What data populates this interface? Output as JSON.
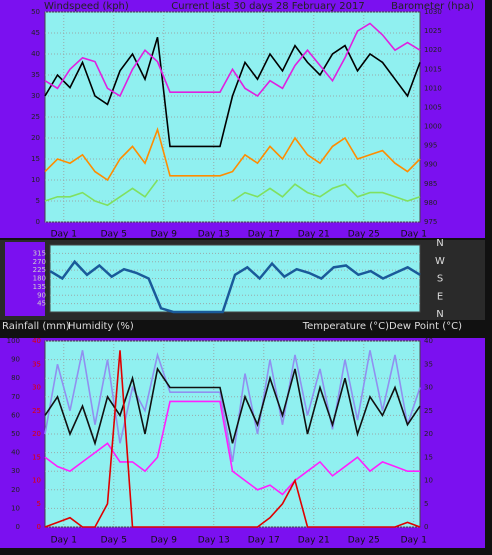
{
  "chart_data": [
    {
      "type": "line",
      "title": "Current last 30 days 28 February 2017",
      "ylabel": "Windspeed (kph)",
      "y2label": "Barometer (hpa)",
      "x": [
        0,
        1,
        2,
        3,
        4,
        5,
        6,
        7,
        8,
        9,
        10,
        11,
        12,
        13,
        14,
        15,
        16,
        17,
        18,
        19,
        20,
        21,
        22,
        23,
        24,
        25,
        26,
        27,
        28,
        29,
        30
      ],
      "xlim": [
        0,
        30
      ],
      "xticks": [
        {
          "value": 1.5,
          "label": "Day 1"
        },
        {
          "value": 5.5,
          "label": "Day 5"
        },
        {
          "value": 9.5,
          "label": "Day 9"
        },
        {
          "value": 13.5,
          "label": "Day 13"
        },
        {
          "value": 17.5,
          "label": "Day 17"
        },
        {
          "value": 21.5,
          "label": "Day 21"
        },
        {
          "value": 25.5,
          "label": "Day 25"
        },
        {
          "value": 29.5,
          "label": "Day 1"
        }
      ],
      "ylim": [
        0,
        50
      ],
      "yticks": [
        0,
        5,
        10,
        15,
        20,
        25,
        30,
        35,
        40,
        45,
        50
      ],
      "y2lim": [
        975,
        1030
      ],
      "y2ticks": [
        975,
        980,
        985,
        990,
        995,
        1000,
        1005,
        1010,
        1015,
        1020,
        1025,
        1030
      ],
      "grid": true,
      "series": [
        {
          "color": "#000000",
          "values": [
            30,
            35,
            32,
            38,
            30,
            28,
            36,
            40,
            34,
            44,
            18,
            18,
            18,
            18,
            18,
            30,
            38,
            34,
            40,
            36,
            42,
            38,
            35,
            40,
            42,
            36,
            40,
            38,
            34,
            30,
            38
          ]
        },
        {
          "color": "#ff8c00",
          "values": [
            12,
            15,
            14,
            16,
            12,
            10,
            15,
            18,
            14,
            22,
            11,
            11,
            11,
            11,
            11,
            12,
            16,
            14,
            18,
            15,
            20,
            16,
            14,
            18,
            20,
            15,
            16,
            17,
            14,
            12,
            15
          ]
        },
        {
          "color": "#80e060",
          "values": [
            5,
            6,
            6,
            7,
            5,
            4,
            6,
            8,
            6,
            10,
            null,
            null,
            null,
            null,
            null,
            5,
            7,
            6,
            8,
            6,
            9,
            7,
            6,
            8,
            9,
            6,
            7,
            7,
            6,
            5,
            6
          ]
        },
        {
          "color": "#e020e0",
          "axis": "y2",
          "values": [
            1012,
            1010,
            1015,
            1018,
            1017,
            1010,
            1008,
            1015,
            1020,
            1017,
            1009,
            1009,
            1009,
            1009,
            1009,
            1015,
            1010,
            1008,
            1012,
            1010,
            1016,
            1020,
            1016,
            1012,
            1018,
            1025,
            1027,
            1024,
            1020,
            1022,
            1020
          ]
        }
      ]
    },
    {
      "type": "line",
      "x": [
        0,
        1,
        2,
        3,
        4,
        5,
        6,
        7,
        8,
        9,
        10,
        11,
        12,
        13,
        14,
        15,
        16,
        17,
        18,
        19,
        20,
        21,
        22,
        23,
        24,
        25,
        26,
        27,
        28,
        29,
        30
      ],
      "xlim": [
        0,
        30
      ],
      "ylim": [
        0,
        360
      ],
      "yticks": [
        45,
        90,
        135,
        180,
        225,
        270,
        315
      ],
      "compass": [
        "N",
        "W",
        "S",
        "E",
        "N"
      ],
      "series": [
        {
          "color": "#1a5a9a",
          "values": [
            220,
            180,
            270,
            200,
            250,
            190,
            230,
            210,
            180,
            20,
            0,
            0,
            0,
            0,
            0,
            200,
            240,
            180,
            260,
            190,
            230,
            210,
            180,
            240,
            250,
            200,
            220,
            180,
            210,
            240,
            200
          ]
        }
      ]
    },
    {
      "type": "line",
      "y3label": "Rainfall (mm)",
      "ylabel": "Humidity (%)",
      "y2label": "Temperature (°C)Dew Point (°C)",
      "x": [
        0,
        1,
        2,
        3,
        4,
        5,
        6,
        7,
        8,
        9,
        10,
        11,
        12,
        13,
        14,
        15,
        16,
        17,
        18,
        19,
        20,
        21,
        22,
        23,
        24,
        25,
        26,
        27,
        28,
        29,
        30
      ],
      "xlim": [
        0,
        30
      ],
      "xticks": [
        {
          "value": 1.5,
          "label": "Day 1"
        },
        {
          "value": 5.5,
          "label": "Day 5"
        },
        {
          "value": 9.5,
          "label": "Day 9"
        },
        {
          "value": 13.5,
          "label": "Day 13"
        },
        {
          "value": 17.5,
          "label": "Day 17"
        },
        {
          "value": 21.5,
          "label": "Day 21"
        },
        {
          "value": 25.5,
          "label": "Day 25"
        },
        {
          "value": 29.5,
          "label": "Day 1"
        }
      ],
      "ylim": [
        0,
        100
      ],
      "yticks": [
        0,
        10,
        20,
        30,
        40,
        50,
        60,
        70,
        80,
        90,
        100
      ],
      "y2lim": [
        0,
        40
      ],
      "y2ticks": [
        0,
        5,
        10,
        15,
        20,
        25,
        30,
        35,
        40
      ],
      "y3lim": [
        0,
        40
      ],
      "y3ticks": [
        0,
        5,
        10,
        15,
        20,
        25,
        30,
        35,
        40
      ],
      "grid": true,
      "series": [
        {
          "color": "#9090f0",
          "axis": "y2",
          "values": [
            20,
            35,
            25,
            38,
            22,
            36,
            18,
            30,
            25,
            37,
            29,
            29,
            29,
            29,
            29,
            14,
            33,
            20,
            36,
            22,
            37,
            24,
            34,
            21,
            36,
            23,
            38,
            25,
            37,
            22,
            30
          ]
        },
        {
          "color": "#111111",
          "values": [
            60,
            70,
            50,
            65,
            45,
            70,
            60,
            80,
            50,
            85,
            75,
            75,
            75,
            75,
            75,
            45,
            70,
            55,
            80,
            60,
            85,
            50,
            75,
            55,
            80,
            50,
            70,
            60,
            75,
            55,
            65
          ]
        },
        {
          "color": "#ff20ff",
          "axis": "y2",
          "values": [
            15,
            13,
            12,
            14,
            16,
            18,
            14,
            14,
            12,
            15,
            27,
            27,
            27,
            27,
            27,
            12,
            10,
            8,
            9,
            7,
            10,
            12,
            14,
            11,
            13,
            15,
            12,
            14,
            13,
            12,
            12
          ]
        },
        {
          "color": "#e00000",
          "axis": "y3",
          "values": [
            0,
            1,
            2,
            0,
            0,
            5,
            38,
            0,
            0,
            0,
            0,
            0,
            0,
            0,
            0,
            0,
            0,
            0,
            2,
            5,
            10,
            0,
            0,
            0,
            0,
            0,
            0,
            0,
            0,
            1,
            0
          ]
        }
      ]
    }
  ]
}
